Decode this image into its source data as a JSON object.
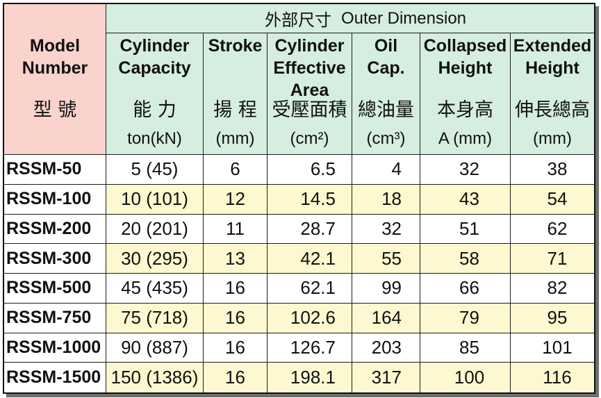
{
  "table": {
    "group_title": {
      "zh": "外部尺寸",
      "en": "Outer Dimension"
    },
    "model_header": {
      "en": [
        "Model",
        "Number"
      ],
      "zh": "型 號"
    },
    "columns": [
      {
        "en": [
          "Cylinder",
          "Capacity"
        ],
        "zh": "能 力",
        "unit": "ton(kN)"
      },
      {
        "en": [
          "Stroke"
        ],
        "zh": "揚 程",
        "unit": "(mm)"
      },
      {
        "en": [
          "Cylinder",
          "Effective",
          "Area"
        ],
        "zh": "受壓面積",
        "unit": "(cm²)"
      },
      {
        "en": [
          "Oil",
          "Cap."
        ],
        "zh": "總油量",
        "unit": "(cm³)"
      },
      {
        "en": [
          "Collapsed",
          "Height"
        ],
        "zh": "本身高",
        "unit": "A (mm)"
      },
      {
        "en": [
          "Extended",
          "Height"
        ],
        "zh": "伸長總高",
        "unit": "(mm)"
      }
    ],
    "rows": [
      {
        "model": "RSSM-50",
        "capacity": "5 (45)",
        "stroke": 6,
        "area": 6.5,
        "oil_cap": 4,
        "collapsed_height": 32,
        "extended_height": 38
      },
      {
        "model": "RSSM-100",
        "capacity": "10 (101)",
        "stroke": 12,
        "area": 14.5,
        "oil_cap": 18,
        "collapsed_height": 43,
        "extended_height": 54
      },
      {
        "model": "RSSM-200",
        "capacity": "20 (201)",
        "stroke": 11,
        "area": 28.7,
        "oil_cap": 32,
        "collapsed_height": 51,
        "extended_height": 62
      },
      {
        "model": "RSSM-300",
        "capacity": "30 (295)",
        "stroke": 13,
        "area": 42.1,
        "oil_cap": 55,
        "collapsed_height": 58,
        "extended_height": 71
      },
      {
        "model": "RSSM-500",
        "capacity": "45 (435)",
        "stroke": 16,
        "area": 62.1,
        "oil_cap": 99,
        "collapsed_height": 66,
        "extended_height": 82
      },
      {
        "model": "RSSM-750",
        "capacity": "75 (718)",
        "stroke": 16,
        "area": 102.6,
        "oil_cap": 164,
        "collapsed_height": 79,
        "extended_height": 95
      },
      {
        "model": "RSSM-1000",
        "capacity": "90 (887)",
        "stroke": 16,
        "area": 126.7,
        "oil_cap": 203,
        "collapsed_height": 85,
        "extended_height": 101
      },
      {
        "model": "RSSM-1500",
        "capacity": "150 (1386)",
        "stroke": 16,
        "area": 198.1,
        "oil_cap": 317,
        "collapsed_height": 100,
        "extended_height": 116
      }
    ]
  },
  "colors": {
    "model_header_bg": "#f9d3cc",
    "dimension_header_bg": "#d5eedf",
    "stripe_row_bg": "#fdf8cf",
    "row_bg": "#ffffff",
    "grid_line": "#1c1c1c",
    "shadow": "#6f6f6f"
  }
}
